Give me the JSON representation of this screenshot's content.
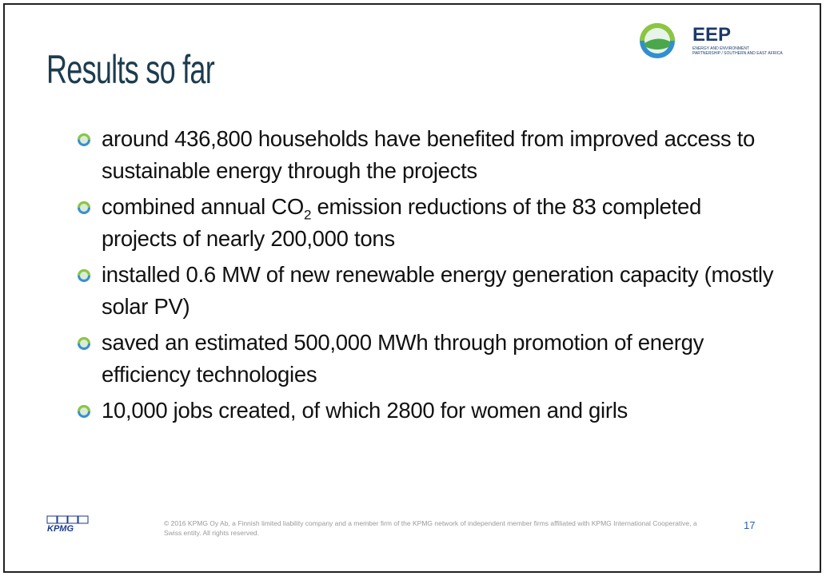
{
  "header": {
    "title": "Results so far",
    "logo_text": "EEP",
    "logo_subtitle": [
      "ENERGY AND ENVIRONMENT",
      "PARTNERSHIP / SOUTHERN AND EAST AFRICA"
    ]
  },
  "bullets": [
    "around 436,800 households have benefited from improved access to sustainable energy through the projects",
    {
      "before": "combined annual CO",
      "sub": "2",
      "after": " emission reductions of the 83 completed projects of nearly 200,000 tons"
    },
    "installed 0.6 MW of new renewable energy generation capacity (mostly solar PV)",
    "saved an estimated 500,000 MWh through promotion of energy efficiency technologies",
    "10,000 jobs created, of which 2800 for women and girls"
  ],
  "footer": {
    "brand": "KPMG",
    "copyright": "© 2016 KPMG Oy Ab, a Finnish limited liability company and a member firm of the KPMG network of independent member firms affiliated with KPMG International Cooperative, a Swiss entity. All rights reserved.",
    "page_number": "17"
  }
}
